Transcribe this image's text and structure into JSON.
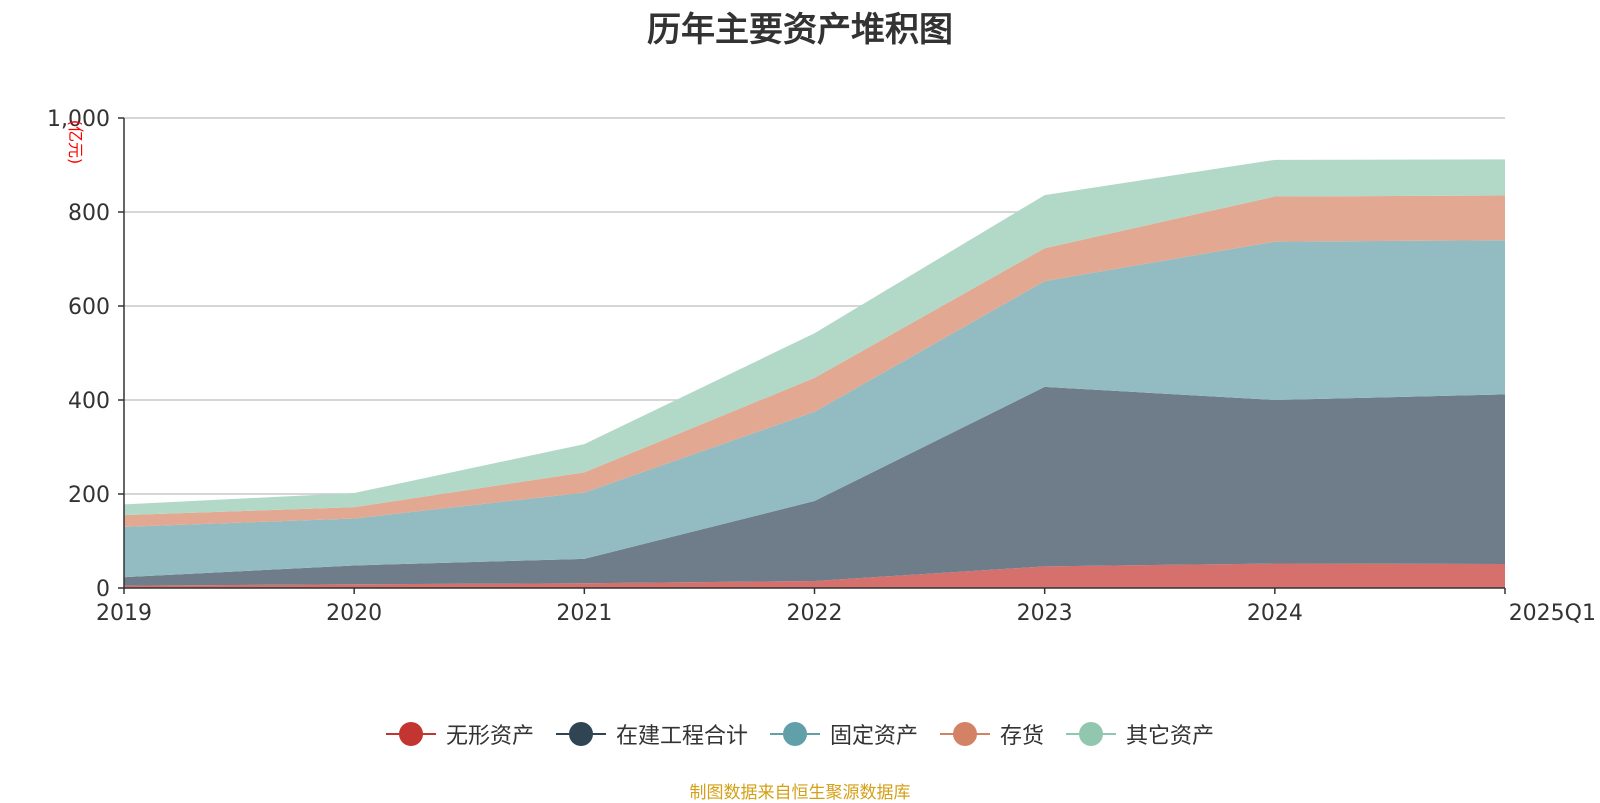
{
  "title": "历年主要资产堆积图",
  "source": "制图数据来自恒生聚源数据库",
  "chart_data": {
    "type": "area",
    "stacked": true,
    "title": "历年主要资产堆积图",
    "ylabel": "(亿元)",
    "ylim": [
      0,
      1000
    ],
    "yticks": [
      0,
      200,
      400,
      600,
      800,
      1000
    ],
    "ytick_labels": [
      "0",
      "200",
      "400",
      "600",
      "800",
      "1,000"
    ],
    "grid": true,
    "legend": "bottom-center",
    "x": [
      "2019",
      "2020",
      "2021",
      "2022",
      "2023",
      "2024",
      "2025Q1"
    ],
    "series": [
      {
        "name": "无形资产",
        "color": "#c23531",
        "fill": "#d6706d",
        "values": [
          5,
          8,
          10,
          15,
          46,
          52,
          51
        ]
      },
      {
        "name": "在建工程合计",
        "color": "#2f4554",
        "fill": "#6e7d89",
        "values": [
          18,
          40,
          52,
          170,
          382,
          348,
          361
        ]
      },
      {
        "name": "固定资产",
        "color": "#61a0a8",
        "fill": "#92bcc2",
        "values": [
          107,
          100,
          141,
          190,
          225,
          337,
          328
        ]
      },
      {
        "name": "存货",
        "color": "#d48265",
        "fill": "#e2a892",
        "values": [
          25,
          24,
          43,
          72,
          70,
          96,
          95
        ]
      },
      {
        "name": "其它资产",
        "color": "#91c7ae",
        "fill": "#b2d9c7",
        "values": [
          23,
          30,
          60,
          95,
          113,
          78,
          77
        ]
      }
    ]
  }
}
